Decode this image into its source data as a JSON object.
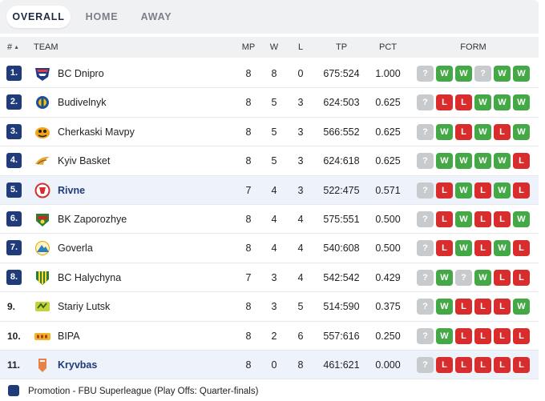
{
  "tabs": [
    {
      "label": "OVERALL",
      "active": true
    },
    {
      "label": "HOME",
      "active": false
    },
    {
      "label": "AWAY",
      "active": false
    }
  ],
  "columns": {
    "rank": "#",
    "team": "TEAM",
    "mp": "MP",
    "w": "W",
    "l": "L",
    "tp": "TP",
    "pct": "PCT",
    "form": "FORM"
  },
  "rows": [
    {
      "rank": "1.",
      "team": "BC Dnipro",
      "mp": "8",
      "w": "8",
      "l": "0",
      "tp": "675:524",
      "pct": "1.000",
      "form": [
        "?",
        "W",
        "W",
        "?",
        "W",
        "W"
      ],
      "highlight": false,
      "promotion": true
    },
    {
      "rank": "2.",
      "team": "Budivelnyk",
      "mp": "8",
      "w": "5",
      "l": "3",
      "tp": "624:503",
      "pct": "0.625",
      "form": [
        "?",
        "L",
        "L",
        "W",
        "W",
        "W"
      ],
      "highlight": false,
      "promotion": true
    },
    {
      "rank": "3.",
      "team": "Cherkaski Mavpy",
      "mp": "8",
      "w": "5",
      "l": "3",
      "tp": "566:552",
      "pct": "0.625",
      "form": [
        "?",
        "W",
        "L",
        "W",
        "L",
        "W"
      ],
      "highlight": false,
      "promotion": true
    },
    {
      "rank": "4.",
      "team": "Kyiv Basket",
      "mp": "8",
      "w": "5",
      "l": "3",
      "tp": "624:618",
      "pct": "0.625",
      "form": [
        "?",
        "W",
        "W",
        "W",
        "W",
        "L"
      ],
      "highlight": false,
      "promotion": true
    },
    {
      "rank": "5.",
      "team": "Rivne",
      "mp": "7",
      "w": "4",
      "l": "3",
      "tp": "522:475",
      "pct": "0.571",
      "form": [
        "?",
        "L",
        "W",
        "L",
        "W",
        "L"
      ],
      "highlight": true,
      "promotion": true
    },
    {
      "rank": "6.",
      "team": "BK Zaporozhye",
      "mp": "8",
      "w": "4",
      "l": "4",
      "tp": "575:551",
      "pct": "0.500",
      "form": [
        "?",
        "L",
        "W",
        "L",
        "L",
        "W"
      ],
      "highlight": false,
      "promotion": true
    },
    {
      "rank": "7.",
      "team": "Goverla",
      "mp": "8",
      "w": "4",
      "l": "4",
      "tp": "540:608",
      "pct": "0.500",
      "form": [
        "?",
        "L",
        "W",
        "L",
        "W",
        "L"
      ],
      "highlight": false,
      "promotion": true
    },
    {
      "rank": "8.",
      "team": "BC Halychyna",
      "mp": "7",
      "w": "3",
      "l": "4",
      "tp": "542:542",
      "pct": "0.429",
      "form": [
        "?",
        "W",
        "?",
        "W",
        "L",
        "L"
      ],
      "highlight": false,
      "promotion": true
    },
    {
      "rank": "9.",
      "team": "Stariy Lutsk",
      "mp": "8",
      "w": "3",
      "l": "5",
      "tp": "514:590",
      "pct": "0.375",
      "form": [
        "?",
        "W",
        "L",
        "L",
        "L",
        "W"
      ],
      "highlight": false,
      "promotion": false
    },
    {
      "rank": "10.",
      "team": "BIPA",
      "mp": "8",
      "w": "2",
      "l": "6",
      "tp": "557:616",
      "pct": "0.250",
      "form": [
        "?",
        "W",
        "L",
        "L",
        "L",
        "L"
      ],
      "highlight": false,
      "promotion": false
    },
    {
      "rank": "11.",
      "team": "Kryvbas",
      "mp": "8",
      "w": "0",
      "l": "8",
      "tp": "461:621",
      "pct": "0.000",
      "form": [
        "?",
        "L",
        "L",
        "L",
        "L",
        "L"
      ],
      "highlight": true,
      "promotion": false
    }
  ],
  "legend": {
    "text": "Promotion - FBU Superleague (Play Offs: Quarter-finals)",
    "color": "#1f3b7a"
  },
  "colors": {
    "win": "#43a845",
    "loss": "#d92c2c",
    "unknown": "#c8cbce",
    "accent": "#1f3b7a",
    "highlight_row": "#eef2fb"
  },
  "icons": {
    "sort": "sort-asc-icon",
    "team_logos": [
      "bc-dnipro-logo",
      "budivelnyk-logo",
      "cherkaski-mavpy-logo",
      "kyiv-basket-logo",
      "rivne-logo",
      "bk-zaporozhye-logo",
      "goverla-logo",
      "bc-halychyna-logo",
      "stariy-lutsk-logo",
      "bipa-logo",
      "kryvbas-logo"
    ]
  }
}
